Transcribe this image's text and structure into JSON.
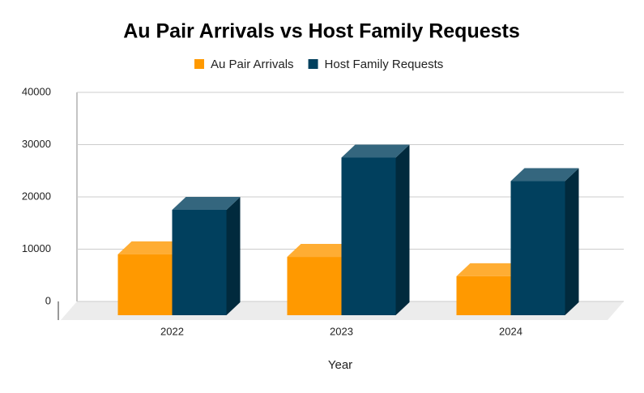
{
  "chart_data": {
    "type": "bar3d",
    "title": "Au Pair Arrivals vs Host Family Requests",
    "x_label": "Year",
    "categories": [
      "2022",
      "2023",
      "2024"
    ],
    "series": [
      {
        "name": "Au Pair Arrivals",
        "color": "#ff9900",
        "values": [
          11500,
          11000,
          7300
        ]
      },
      {
        "name": "Host Family Requests",
        "color": "#01405e",
        "values": [
          20000,
          30000,
          25500
        ]
      }
    ],
    "ylim": [
      0,
      40000
    ],
    "yticks": [
      0,
      10000,
      20000,
      30000,
      40000
    ],
    "grid": true
  }
}
